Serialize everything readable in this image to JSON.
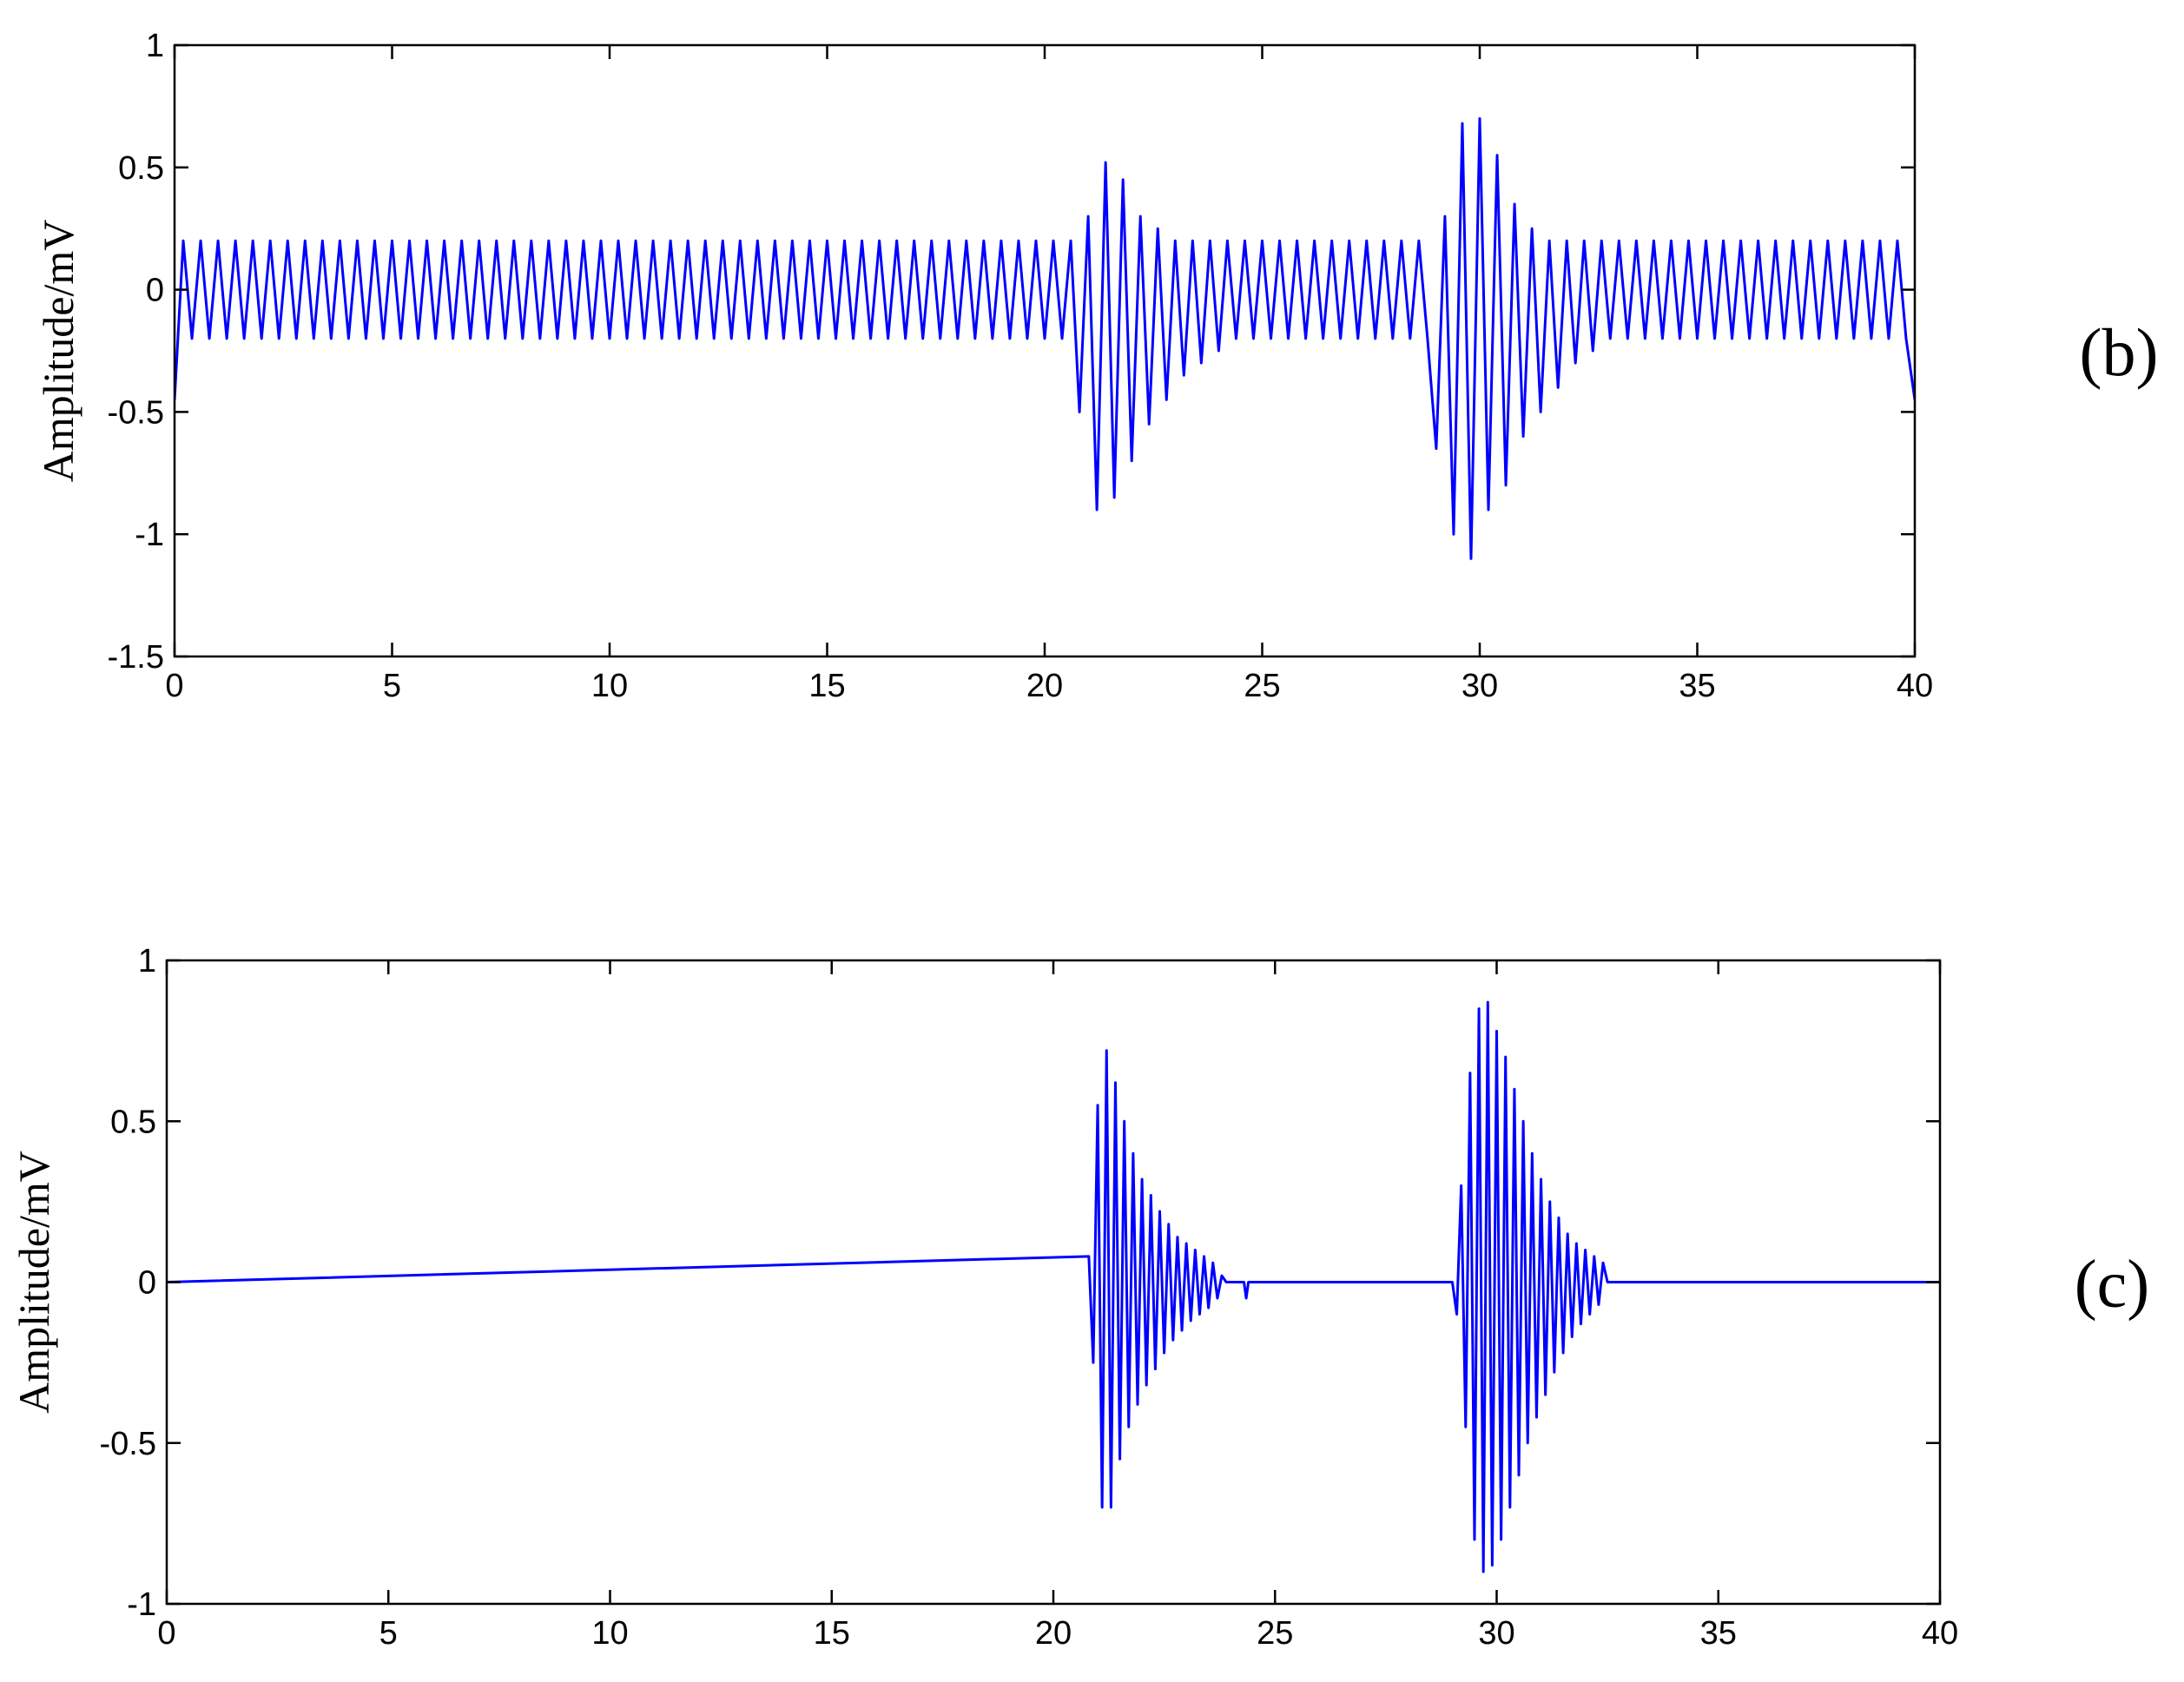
{
  "chart_data": [
    {
      "type": "line",
      "ylabel": "Amplitude/mV",
      "panel_label": "(b)",
      "color": "#0000ff",
      "xlim": [
        0,
        40
      ],
      "ylim": [
        -1.5,
        1
      ],
      "xticks": [
        0,
        5,
        10,
        15,
        20,
        25,
        30,
        35,
        40
      ],
      "yticks": [
        -1.5,
        -1,
        -0.5,
        0,
        0.5,
        1
      ],
      "x": [
        0,
        0.2,
        0.4,
        0.6,
        0.8,
        1,
        1.2,
        1.4,
        1.6,
        1.8,
        2,
        2.2,
        2.4,
        2.6,
        2.8,
        3,
        3.2,
        3.4,
        3.6,
        3.8,
        4,
        4.2,
        4.4,
        4.6,
        4.8,
        5,
        5.2,
        5.4,
        5.6,
        5.8,
        6,
        6.2,
        6.4,
        6.6,
        6.8,
        7,
        7.2,
        7.4,
        7.6,
        7.8,
        8,
        8.2,
        8.4,
        8.6,
        8.8,
        9,
        9.2,
        9.4,
        9.6,
        9.8,
        10,
        10.2,
        10.4,
        10.6,
        10.8,
        11,
        11.2,
        11.4,
        11.6,
        11.8,
        12,
        12.2,
        12.4,
        12.6,
        12.8,
        13,
        13.2,
        13.4,
        13.6,
        13.8,
        14,
        14.2,
        14.4,
        14.6,
        14.8,
        15,
        15.2,
        15.4,
        15.6,
        15.8,
        16,
        16.2,
        16.4,
        16.6,
        16.8,
        17,
        17.2,
        17.4,
        17.6,
        17.8,
        18,
        18.2,
        18.4,
        18.6,
        18.8,
        19,
        19.2,
        19.4,
        19.6,
        19.8,
        20,
        20.2,
        20.4,
        20.6,
        20.8,
        21,
        21.2,
        21.4,
        21.6,
        21.8,
        22,
        22.2,
        22.4,
        22.6,
        22.8,
        23,
        23.2,
        23.4,
        23.6,
        23.8,
        24,
        24.2,
        24.4,
        24.6,
        24.8,
        25,
        25.2,
        25.4,
        25.6,
        25.8,
        26,
        26.2,
        26.4,
        26.6,
        26.8,
        27,
        27.2,
        27.4,
        27.6,
        27.8,
        28,
        28.2,
        28.4,
        28.6,
        28.8,
        29,
        29.2,
        29.4,
        29.6,
        29.8,
        30,
        30.2,
        30.4,
        30.6,
        30.8,
        31,
        31.2,
        31.4,
        31.6,
        31.8,
        32,
        32.2,
        32.4,
        32.6,
        32.8,
        33,
        33.2,
        33.4,
        33.6,
        33.8,
        34,
        34.2,
        34.4,
        34.6,
        34.8,
        35,
        35.2,
        35.4,
        35.6,
        35.8,
        36,
        36.2,
        36.4,
        36.6,
        36.8,
        37,
        37.2,
        37.4,
        37.6,
        37.8,
        38,
        38.2,
        38.4,
        38.6,
        38.8,
        39,
        39.2,
        39.4,
        39.6,
        39.8,
        40
      ],
      "values": [
        -0.45,
        0.2,
        -0.2,
        0.2,
        -0.2,
        0.2,
        -0.2,
        0.2,
        -0.2,
        0.2,
        -0.2,
        0.2,
        -0.2,
        0.2,
        -0.2,
        0.2,
        -0.2,
        0.2,
        -0.2,
        0.2,
        -0.2,
        0.2,
        -0.2,
        0.2,
        -0.2,
        0.2,
        -0.2,
        0.2,
        -0.2,
        0.2,
        -0.2,
        0.2,
        -0.2,
        0.2,
        -0.2,
        0.2,
        -0.2,
        0.2,
        -0.2,
        0.2,
        -0.2,
        0.2,
        -0.2,
        0.2,
        -0.2,
        0.2,
        -0.2,
        0.2,
        -0.2,
        0.2,
        -0.2,
        0.2,
        -0.2,
        0.2,
        -0.2,
        0.2,
        -0.2,
        0.2,
        -0.2,
        0.2,
        -0.2,
        0.2,
        -0.2,
        0.2,
        -0.2,
        0.2,
        -0.2,
        0.2,
        -0.2,
        0.2,
        -0.2,
        0.2,
        -0.2,
        0.2,
        -0.2,
        0.2,
        -0.2,
        0.2,
        -0.2,
        0.2,
        -0.2,
        0.2,
        -0.2,
        0.2,
        -0.2,
        0.2,
        -0.2,
        0.2,
        -0.2,
        0.2,
        -0.2,
        0.2,
        -0.2,
        0.2,
        -0.2,
        0.2,
        -0.2,
        0.2,
        -0.2,
        0.2,
        -0.2,
        0.2,
        -0.2,
        0.2,
        -0.5,
        0.3,
        -0.9,
        0.52,
        -0.85,
        0.45,
        -0.7,
        0.3,
        -0.55,
        0.25,
        -0.45,
        0.2,
        -0.35,
        0.2,
        -0.3,
        0.2,
        -0.25,
        0.2,
        -0.2,
        0.2,
        -0.2,
        0.2,
        -0.2,
        0.2,
        -0.2,
        0.2,
        -0.2,
        0.2,
        -0.2,
        0.2,
        -0.2,
        0.2,
        -0.2,
        0.2,
        -0.2,
        0.2,
        -0.2,
        0.2,
        -0.2,
        0.2,
        -0.2,
        -0.65,
        0.3,
        -1.0,
        0.68,
        -1.1,
        0.7,
        -0.9,
        0.55,
        -0.8,
        0.35,
        -0.6,
        0.25,
        -0.5,
        0.2,
        -0.4,
        0.2,
        -0.3,
        0.2,
        -0.25,
        0.2,
        -0.2,
        0.2,
        -0.2,
        0.2,
        -0.2,
        0.2,
        -0.2,
        0.2,
        -0.2,
        0.2,
        -0.2,
        0.2,
        -0.2,
        0.2,
        -0.2,
        0.2,
        -0.2,
        0.2,
        -0.2,
        0.2,
        -0.2,
        0.2,
        -0.2,
        0.2,
        -0.2,
        0.2,
        -0.2,
        0.2,
        -0.2,
        0.2,
        -0.2,
        0.2,
        -0.2,
        0.2,
        -0.2,
        -0.45
      ]
    },
    {
      "type": "line",
      "ylabel": "Amplitude/mV",
      "panel_label": "(c)",
      "color": "#0000ff",
      "xlim": [
        0,
        40
      ],
      "ylim": [
        -1,
        1
      ],
      "xticks": [
        0,
        5,
        10,
        15,
        20,
        25,
        30,
        35,
        40
      ],
      "yticks": [
        -1,
        -0.5,
        0,
        0.5,
        1
      ],
      "x": [
        0,
        20.8,
        20.9,
        21,
        21.1,
        21.2,
        21.3,
        21.4,
        21.5,
        21.6,
        21.7,
        21.8,
        21.9,
        22,
        22.1,
        22.2,
        22.3,
        22.4,
        22.5,
        22.6,
        22.7,
        22.8,
        22.9,
        23,
        23.1,
        23.2,
        23.3,
        23.4,
        23.5,
        23.6,
        23.7,
        23.8,
        23.9,
        24.3,
        24.35,
        24.4,
        29,
        29.1,
        29.2,
        29.3,
        29.4,
        29.5,
        29.6,
        29.7,
        29.8,
        29.9,
        30,
        30.1,
        30.2,
        30.3,
        30.4,
        30.5,
        30.6,
        30.7,
        30.8,
        30.9,
        31,
        31.1,
        31.2,
        31.3,
        31.4,
        31.5,
        31.6,
        31.7,
        31.8,
        31.9,
        32,
        32.1,
        32.2,
        32.3,
        32.4,
        32.5,
        40
      ],
      "values": [
        0,
        0.08,
        -0.25,
        0.55,
        -0.7,
        0.72,
        -0.7,
        0.62,
        -0.55,
        0.5,
        -0.45,
        0.4,
        -0.38,
        0.32,
        -0.32,
        0.27,
        -0.27,
        0.22,
        -0.22,
        0.18,
        -0.18,
        0.14,
        -0.15,
        0.12,
        -0.12,
        0.1,
        -0.1,
        0.08,
        -0.08,
        0.06,
        -0.05,
        0.02,
        0,
        0,
        -0.05,
        0,
        0,
        -0.1,
        0.3,
        -0.45,
        0.65,
        -0.8,
        0.85,
        -0.9,
        0.87,
        -0.88,
        0.78,
        -0.8,
        0.7,
        -0.7,
        0.6,
        -0.6,
        0.5,
        -0.5,
        0.4,
        -0.42,
        0.32,
        -0.35,
        0.25,
        -0.28,
        0.2,
        -0.22,
        0.15,
        -0.17,
        0.12,
        -0.13,
        0.1,
        -0.1,
        0.08,
        -0.07,
        0.06,
        0,
        0
      ]
    }
  ]
}
